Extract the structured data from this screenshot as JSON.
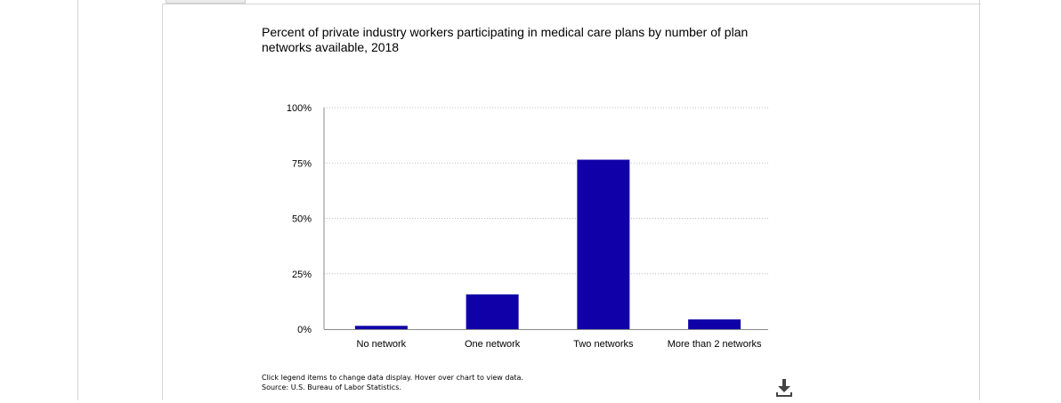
{
  "chart_data": {
    "type": "bar",
    "title": "Percent of private industry workers participating in medical care plans by number of plan networks available, 2018",
    "categories": [
      "No network",
      "One network",
      "Two networks",
      "More than 2 networks"
    ],
    "values": [
      1.5,
      15.7,
      76.5,
      4.4
    ],
    "ylim": [
      0,
      100
    ],
    "yticks": [
      "0%",
      "25%",
      "50%",
      "75%",
      "100%"
    ],
    "ytick_values": [
      0,
      25,
      50,
      75,
      100
    ],
    "xlabel": "",
    "ylabel": "",
    "grid": true,
    "bar_color": "#1000a8"
  },
  "footer": {
    "instructions": "Click legend items to change data display. Hover over chart to view data.",
    "source": "Source: U.S. Bureau of Labor Statistics."
  },
  "toolbar": {
    "download_icon": "download-icon"
  }
}
